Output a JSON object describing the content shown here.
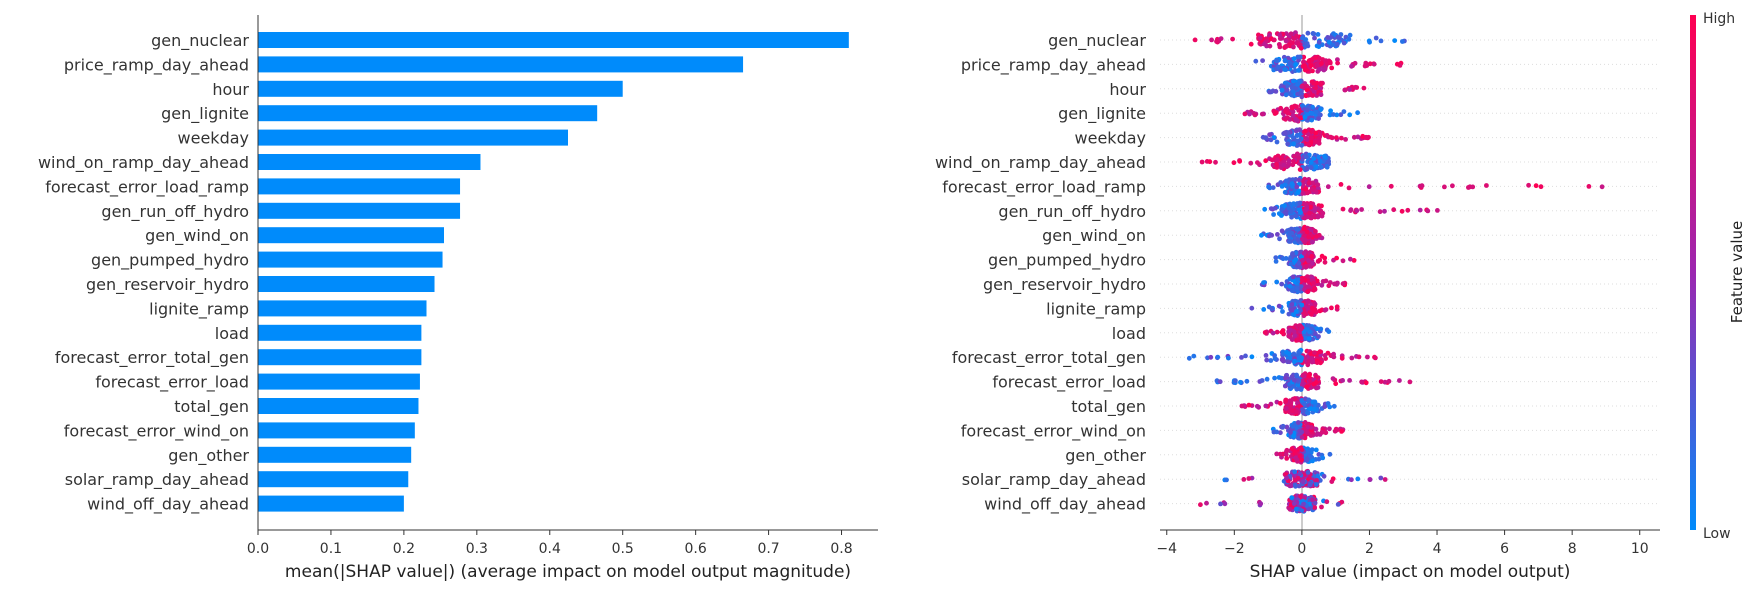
{
  "colors": {
    "bar": "#008bfb",
    "low": "#008bfb",
    "high": "#ff0052",
    "mid": "#9c27b0",
    "axis": "#333333",
    "grid": "#cccccc"
  },
  "chart_data": [
    {
      "type": "bar",
      "orientation": "horizontal",
      "categories": [
        "gen_nuclear",
        "price_ramp_day_ahead",
        "hour",
        "gen_lignite",
        "weekday",
        "wind_on_ramp_day_ahead",
        "forecast_error_load_ramp",
        "gen_run_off_hydro",
        "gen_wind_on",
        "gen_pumped_hydro",
        "gen_reservoir_hydro",
        "lignite_ramp",
        "load",
        "forecast_error_total_gen",
        "forecast_error_load",
        "total_gen",
        "forecast_error_wind_on",
        "gen_other",
        "solar_ramp_day_ahead",
        "wind_off_day_ahead"
      ],
      "values": [
        0.81,
        0.665,
        0.5,
        0.465,
        0.425,
        0.305,
        0.277,
        0.277,
        0.255,
        0.253,
        0.242,
        0.231,
        0.224,
        0.224,
        0.222,
        0.22,
        0.215,
        0.21,
        0.206,
        0.2
      ],
      "xlim": [
        0,
        0.85
      ],
      "xticks": [
        "0.0",
        "0.1",
        "0.2",
        "0.3",
        "0.4",
        "0.5",
        "0.6",
        "0.7",
        "0.8"
      ],
      "xlabel": "mean(|SHAP value|) (average impact on model output magnitude)",
      "grid": false
    },
    {
      "type": "scatter",
      "subtype": "beeswarm",
      "categories": [
        "gen_nuclear",
        "price_ramp_day_ahead",
        "hour",
        "gen_lignite",
        "weekday",
        "wind_on_ramp_day_ahead",
        "forecast_error_load_ramp",
        "gen_run_off_hydro",
        "gen_wind_on",
        "gen_pumped_hydro",
        "gen_reservoir_hydro",
        "lignite_ramp",
        "load",
        "forecast_error_total_gen",
        "forecast_error_load",
        "total_gen",
        "forecast_error_wind_on",
        "gen_other",
        "solar_ramp_day_ahead",
        "wind_off_day_ahead"
      ],
      "rows": [
        {
          "min": -3.2,
          "max": 4.4,
          "low_side": "right",
          "spread": 2.6
        },
        {
          "min": -1.6,
          "max": 3.1,
          "low_side": "left",
          "spread": 1.8
        },
        {
          "min": -1.0,
          "max": 2.1,
          "low_side": "left",
          "spread": 1.2
        },
        {
          "min": -1.7,
          "max": 1.8,
          "low_side": "right",
          "spread": 1.1
        },
        {
          "min": -1.3,
          "max": 2.1,
          "low_side": "left",
          "spread": 1.1
        },
        {
          "min": -3.5,
          "max": 0.9,
          "low_side": "right",
          "spread": 1.6
        },
        {
          "min": -1.3,
          "max": 9.9,
          "low_side": "left",
          "spread": 1.0
        },
        {
          "min": -1.1,
          "max": 4.1,
          "low_side": "left",
          "spread": 1.2
        },
        {
          "min": -1.5,
          "max": 0.7,
          "low_side": "left",
          "spread": 0.8
        },
        {
          "min": -0.8,
          "max": 2.1,
          "low_side": "left",
          "spread": 0.7
        },
        {
          "min": -1.2,
          "max": 1.3,
          "low_side": "left",
          "spread": 0.8
        },
        {
          "min": -1.5,
          "max": 1.1,
          "low_side": "left",
          "spread": 0.8
        },
        {
          "min": -1.1,
          "max": 1.2,
          "low_side": "right",
          "spread": 0.8
        },
        {
          "min": -3.4,
          "max": 2.2,
          "low_side": "left",
          "spread": 1.2
        },
        {
          "min": -2.6,
          "max": 3.2,
          "low_side": "left",
          "spread": 1.0
        },
        {
          "min": -1.8,
          "max": 1.0,
          "low_side": "right",
          "spread": 1.0
        },
        {
          "min": -0.9,
          "max": 1.4,
          "low_side": "left",
          "spread": 0.7
        },
        {
          "min": -0.9,
          "max": 1.0,
          "low_side": "right",
          "spread": 0.6
        },
        {
          "min": -2.5,
          "max": 2.6,
          "low_side": "mixed",
          "spread": 1.0
        },
        {
          "min": -3.1,
          "max": 1.2,
          "low_side": "mixed",
          "spread": 0.8
        }
      ],
      "xlim": [
        -4.2,
        10.6
      ],
      "xticks": [
        "−4",
        "−2",
        "0",
        "2",
        "4",
        "6",
        "8",
        "10"
      ],
      "xlabel": "SHAP value (impact on model output)",
      "colorbar": {
        "label": "Feature value",
        "high": "High",
        "low": "Low"
      },
      "grid": false
    }
  ]
}
